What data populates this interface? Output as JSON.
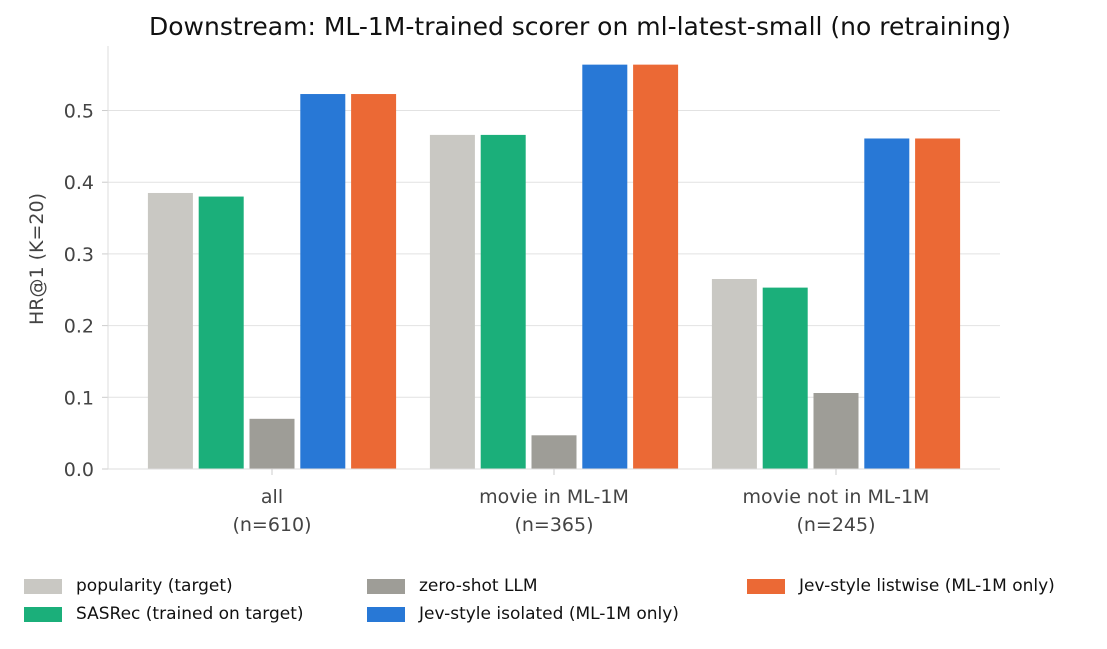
{
  "chart_data": {
    "type": "bar",
    "title": "Downstream: ML-1M-trained scorer on ml-latest-small (no retraining)",
    "xlabel": "",
    "ylabel": "HR@1 (K=20)",
    "ylim": [
      0,
      0.59
    ],
    "yticks": [
      "0.0",
      "0.1",
      "0.2",
      "0.3",
      "0.4",
      "0.5"
    ],
    "grid": "horizontal",
    "legend_position": "bottom",
    "categories": [
      {
        "line1": "all",
        "line2": "(n=610)"
      },
      {
        "line1": "movie in ML-1M",
        "line2": "(n=365)"
      },
      {
        "line1": "movie not in ML-1M",
        "line2": "(n=245)"
      }
    ],
    "series": [
      {
        "name": "popularity (target)",
        "color": "#c9c8c3",
        "values": [
          0.385,
          0.466,
          0.265
        ]
      },
      {
        "name": "SASRec (trained on target)",
        "color": "#1baf7a",
        "values": [
          0.38,
          0.466,
          0.253
        ]
      },
      {
        "name": "zero-shot LLM",
        "color": "#9e9d97",
        "values": [
          0.07,
          0.047,
          0.106
        ]
      },
      {
        "name": "Jev-style isolated (ML-1M only)",
        "color": "#2878d6",
        "values": [
          0.523,
          0.564,
          0.461
        ]
      },
      {
        "name": "Jev-style listwise (ML-1M only)",
        "color": "#eb6935",
        "values": [
          0.523,
          0.564,
          0.461
        ]
      }
    ]
  }
}
